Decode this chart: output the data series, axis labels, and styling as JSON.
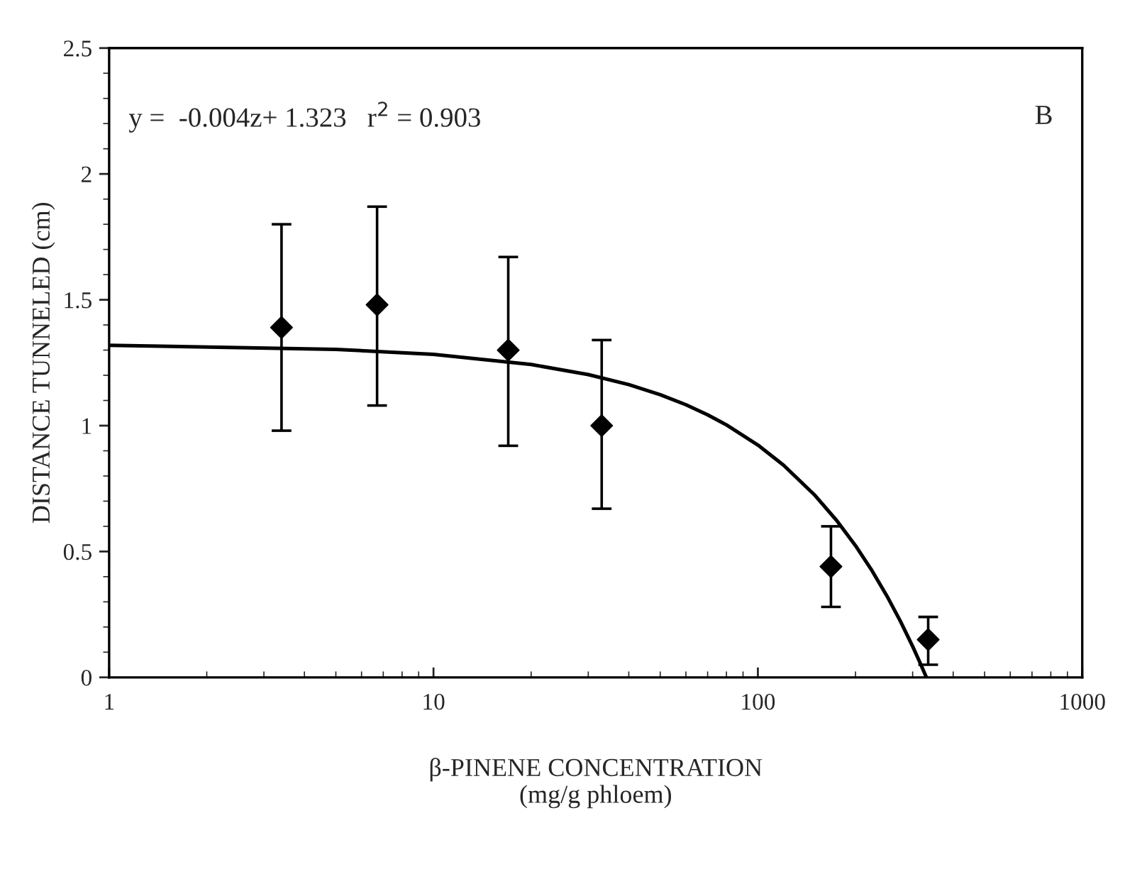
{
  "chart_data": {
    "type": "scatter",
    "xlabel": "β-PINENE CONCENTRATION\n(mg/g phloem)",
    "ylabel": "DISTANCE TUNNELED (cm)",
    "log": "x",
    "xlim": [
      1,
      1000
    ],
    "xticks": [
      1,
      10,
      100,
      1000
    ],
    "ylim": [
      0,
      2.5
    ],
    "yticks": [
      0,
      0.5,
      1,
      1.5,
      2,
      2.5
    ],
    "grid": false,
    "legend": false,
    "annotations": [
      "y =  -0.004z+ 1.323   r$^{2}$ = 0.903",
      "B"
    ],
    "series": [
      {
        "color": "#000000",
        "marker": "diamond",
        "x": [
          3.4,
          6.7,
          17,
          33,
          168,
          335
        ],
        "values": [
          1.39,
          1.48,
          1.3,
          1.0,
          0.44,
          0.15
        ],
        "errors": [
          [
            0.98,
            1.8
          ],
          [
            1.08,
            1.87
          ],
          [
            0.92,
            1.67
          ],
          [
            0.67,
            1.34
          ],
          [
            0.28,
            0.6
          ],
          [
            0.05,
            0.24
          ]
        ]
      },
      {
        "type": "line",
        "color": "#000000",
        "marker": "none",
        "line_style": "solid",
        "x": [
          1,
          5,
          10,
          20,
          30,
          40,
          50,
          60,
          70,
          80,
          100,
          120,
          150,
          175,
          200,
          225,
          250,
          275,
          300,
          315,
          330
        ],
        "values": [
          1.319,
          1.303,
          1.283,
          1.243,
          1.203,
          1.163,
          1.123,
          1.083,
          1.043,
          1.003,
          0.923,
          0.843,
          0.723,
          0.623,
          0.523,
          0.423,
          0.323,
          0.223,
          0.123,
          0.063,
          0.003
        ]
      }
    ]
  }
}
